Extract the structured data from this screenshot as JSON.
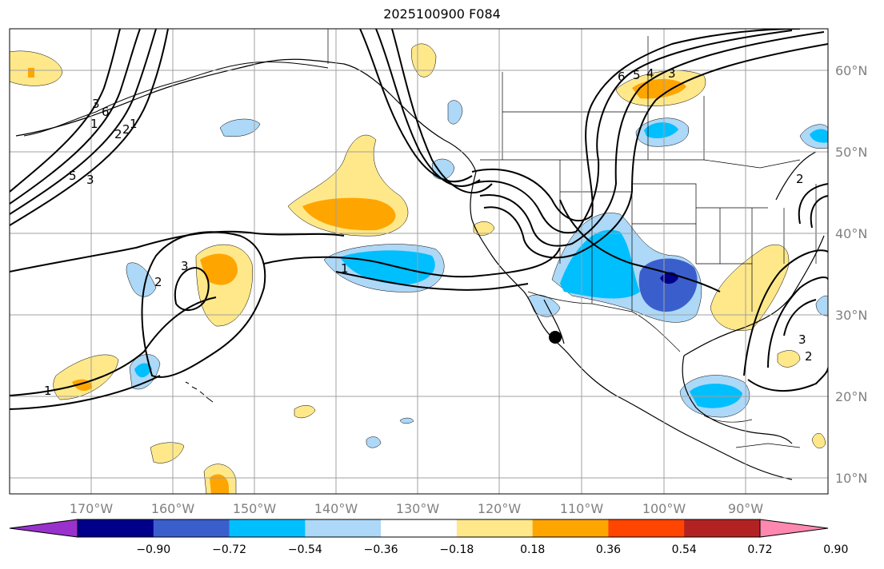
{
  "title": "2025100900 F084",
  "axes": {
    "longitude_labels": [
      "170°W",
      "160°W",
      "150°W",
      "140°W",
      "130°W",
      "120°W",
      "110°W",
      "100°W",
      "90°W"
    ],
    "latitude_labels": [
      "60°N",
      "50°N",
      "40°N",
      "30°N",
      "20°N",
      "10°N"
    ]
  },
  "colorbar": {
    "tick_labels": [
      "−0.90",
      "−0.72",
      "−0.54",
      "−0.36",
      "−0.18",
      "0.18",
      "0.36",
      "0.54",
      "0.72",
      "0.90"
    ],
    "colors": [
      "#9932cc",
      "#00008b",
      "#3a5fcd",
      "#00bfff",
      "#add8f7",
      "#ffffff",
      "#ffe88a",
      "#ffa500",
      "#ff4500",
      "#b22222",
      "#ff88b0"
    ]
  },
  "contour_labels": [
    "1",
    "2",
    "3",
    "6",
    "2",
    "1",
    "5",
    "3",
    "1",
    "2",
    "3",
    "1",
    "6",
    "5",
    "4",
    "3",
    "2",
    "3",
    "2"
  ],
  "marker": "observation-point"
}
